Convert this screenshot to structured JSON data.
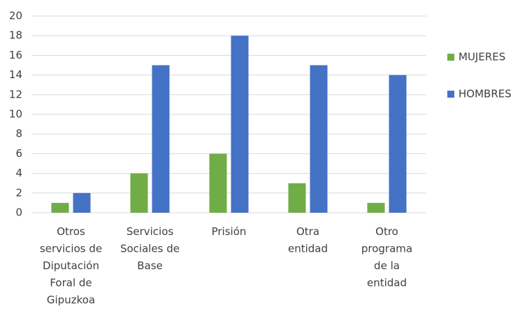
{
  "chart_data": {
    "type": "bar",
    "categories": [
      "Otros\nservicios de\nDiputación\nForal de\nGipuzkoa",
      "Servicios\nSociales de\nBase",
      "Prisión",
      "Otra\nentidad",
      "Otro\nprograma\nde la\nentidad"
    ],
    "series": [
      {
        "name": "MUJERES",
        "color": "#70ad47",
        "values": [
          1,
          4,
          6,
          3,
          1
        ]
      },
      {
        "name": "HOMBRES",
        "color": "#4472c4",
        "values": [
          2,
          15,
          18,
          15,
          14
        ]
      }
    ],
    "ylim": [
      0,
      20
    ],
    "yticks": [
      0,
      2,
      4,
      6,
      8,
      10,
      12,
      14,
      16,
      18,
      20
    ],
    "grid": true,
    "legend": "right"
  }
}
